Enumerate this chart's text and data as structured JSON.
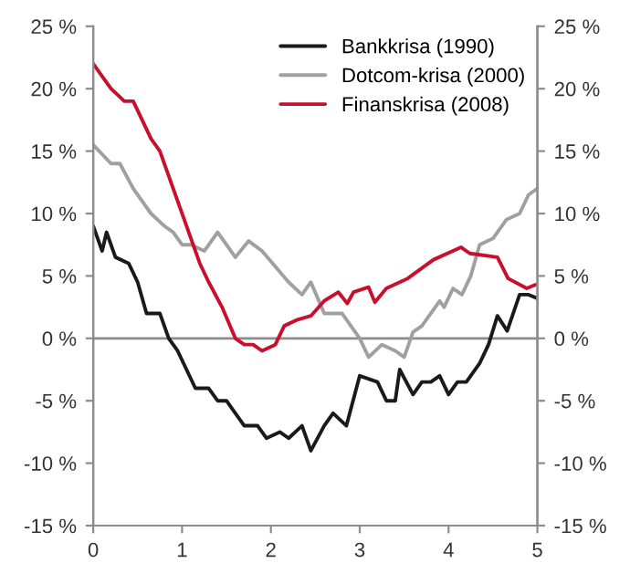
{
  "chart_data": {
    "type": "line",
    "xlim": [
      0,
      5
    ],
    "xticks": [
      0,
      1,
      2,
      3,
      4,
      5
    ],
    "ylim": [
      -15,
      25
    ],
    "yticks": [
      {
        "value": -15,
        "label": "-15 %"
      },
      {
        "value": -10,
        "label": "-10 %"
      },
      {
        "value": -5,
        "label": "-5 %"
      },
      {
        "value": 0,
        "label": "0 %"
      },
      {
        "value": 5,
        "label": "5 %"
      },
      {
        "value": 10,
        "label": "10 %"
      },
      {
        "value": 15,
        "label": "15 %"
      },
      {
        "value": 20,
        "label": "20 %"
      },
      {
        "value": 25,
        "label": "25 %"
      }
    ],
    "y2lim": [
      -15,
      25
    ],
    "y2ticks": [
      {
        "value": -15,
        "label": "-15 %"
      },
      {
        "value": -10,
        "label": "-10 %"
      },
      {
        "value": -5,
        "label": "-5 %"
      },
      {
        "value": 0,
        "label": "0 %"
      },
      {
        "value": 5,
        "label": "5 %"
      },
      {
        "value": 10,
        "label": "10 %"
      },
      {
        "value": 15,
        "label": "15 %"
      },
      {
        "value": 20,
        "label": "20 %"
      },
      {
        "value": 25,
        "label": "25 %"
      }
    ],
    "ref_lines": [
      {
        "axis": "y",
        "value": 0,
        "label": null,
        "color": "#8c8c8c"
      }
    ],
    "grid": false,
    "legend": "top right",
    "marker": "none",
    "line_style": "solid",
    "series": [
      {
        "name": "Bankkrisa (1990)",
        "color": "#1a1a1a",
        "x": [
          0,
          0.1,
          0.15,
          0.25,
          0.4,
          0.5,
          0.6,
          0.75,
          0.85,
          0.95,
          1.05,
          1.15,
          1.3,
          1.4,
          1.5,
          1.6,
          1.7,
          1.85,
          1.95,
          2.1,
          2.2,
          2.35,
          2.45,
          2.6,
          2.7,
          2.85,
          3.0,
          3.2,
          3.3,
          3.4,
          3.45,
          3.6,
          3.7,
          3.8,
          3.9,
          4.0,
          4.1,
          4.2,
          4.35,
          4.45,
          4.55,
          4.66,
          4.8,
          4.9,
          5.0
        ],
        "values": [
          9,
          7,
          8.5,
          6.5,
          6,
          4.5,
          2,
          2,
          0,
          -1,
          -2.5,
          -4,
          -4,
          -5,
          -5,
          -6,
          -7,
          -7,
          -8,
          -7.5,
          -8,
          -7,
          -9,
          -7,
          -6,
          -7,
          -3,
          -3.5,
          -5,
          -5,
          -2.5,
          -4.5,
          -3.5,
          -3.5,
          -3,
          -4.5,
          -3.5,
          -3.5,
          -2,
          -0.5,
          1.8,
          0.6,
          3.5,
          3.5,
          3.2
        ]
      },
      {
        "name": "Dotcom-krisa (2000)",
        "color": "#a0a0a0",
        "x": [
          0,
          0.2,
          0.3,
          0.45,
          0.65,
          0.8,
          0.9,
          1.0,
          1.1,
          1.25,
          1.4,
          1.5,
          1.6,
          1.75,
          1.9,
          2.2,
          2.35,
          2.45,
          2.6,
          2.8,
          3.0,
          3.1,
          3.25,
          3.4,
          3.5,
          3.6,
          3.7,
          3.9,
          3.95,
          4.05,
          4.15,
          4.25,
          4.35,
          4.5,
          4.65,
          4.8,
          4.9,
          5.0
        ],
        "values": [
          15.5,
          14,
          14,
          12,
          10,
          9,
          8.5,
          7.5,
          7.5,
          7,
          8.5,
          7.5,
          6.5,
          7.8,
          7,
          4.5,
          3.5,
          4.5,
          2,
          2,
          0,
          -1.5,
          -0.5,
          -1,
          -1.5,
          0.5,
          1,
          3,
          2.5,
          4,
          3.5,
          5,
          7.5,
          8,
          9.5,
          10,
          11.5,
          12
        ]
      },
      {
        "name": "Finanskrisa (2008)",
        "color": "#c8102e",
        "x": [
          0,
          0.1,
          0.2,
          0.35,
          0.45,
          0.65,
          0.75,
          0.9,
          1.05,
          1.2,
          1.3,
          1.45,
          1.6,
          1.7,
          1.8,
          1.9,
          2.05,
          2.15,
          2.3,
          2.45,
          2.6,
          2.76,
          2.86,
          2.93,
          3.1,
          3.17,
          3.3,
          3.54,
          3.83,
          4.14,
          4.24,
          4.55,
          4.67,
          4.88,
          4.98
        ],
        "values": [
          22,
          21,
          20,
          19,
          19,
          16,
          15,
          12,
          9,
          6,
          4.5,
          2.5,
          0,
          -0.5,
          -0.5,
          -1,
          -0.5,
          1,
          1.5,
          1.8,
          3,
          3.7,
          2.8,
          3.7,
          4.1,
          2.9,
          4,
          4.8,
          6.3,
          7.3,
          6.8,
          6.5,
          4.8,
          4,
          4.3
        ]
      }
    ]
  }
}
